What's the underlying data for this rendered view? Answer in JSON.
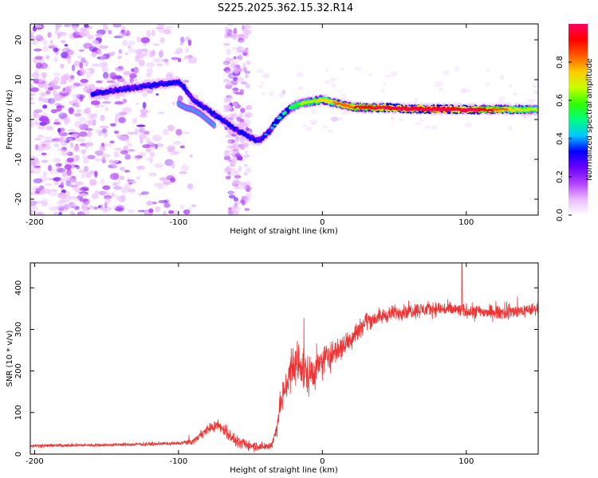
{
  "figure_title": "S225.2025.362.15.32.R14",
  "chart_data": [
    {
      "type": "heatmap",
      "title": "S225.2025.362.15.32.R14",
      "xlabel": "Height of straight line (km)",
      "ylabel": "Frequency (Hz)",
      "xlim": [
        -203,
        150
      ],
      "ylim": [
        -24,
        24
      ],
      "x_ticks": [
        -200,
        -100,
        0,
        100
      ],
      "x_tick_labels": [
        "-200",
        "-100",
        "0",
        "100"
      ],
      "y_ticks": [
        -20,
        -10,
        0,
        10,
        20
      ],
      "y_tick_labels": [
        "-20",
        "-10",
        "0",
        "10",
        "20"
      ],
      "colorbar": {
        "label": "Normalized spectral amplitude",
        "range": [
          0,
          1
        ],
        "ticks": [
          0.0,
          0.2,
          0.4,
          0.6,
          0.8
        ],
        "tick_labels": [
          "0.0",
          "0.2",
          "0.4",
          "0.6",
          "0.8"
        ],
        "colors": [
          "#ffffff",
          "#e9b9ff",
          "#b23fff",
          "#6a00ff",
          "#0000ff",
          "#00c8ff",
          "#00ff80",
          "#30ff00",
          "#c8ff00",
          "#ffcc00",
          "#ff5a00",
          "#ff0000",
          "#ff0060"
        ]
      },
      "ridge": {
        "x": [
          -160,
          -150,
          -140,
          -130,
          -120,
          -110,
          -100,
          -96,
          -90,
          -80,
          -70,
          -60,
          -50,
          -45,
          -38,
          -33,
          -28,
          -22,
          -15,
          -8,
          0,
          10,
          20,
          30,
          45,
          60,
          80,
          100,
          120,
          150
        ],
        "y": [
          6.5,
          7.0,
          7.5,
          8.0,
          8.5,
          9.0,
          9.5,
          8.0,
          5.0,
          2.5,
          0,
          -2.5,
          -4.5,
          -5.5,
          -3.5,
          -1.0,
          1.0,
          3.0,
          4.0,
          4.5,
          5.0,
          4.0,
          3.2,
          3.0,
          3.0,
          2.7,
          2.6,
          2.5,
          2.5,
          2.5
        ],
        "amplitude": [
          0.3,
          0.3,
          0.3,
          0.3,
          0.3,
          0.3,
          0.3,
          0.3,
          0.3,
          0.3,
          0.3,
          0.3,
          0.3,
          0.3,
          0.35,
          0.4,
          0.45,
          0.5,
          0.55,
          0.6,
          0.65,
          0.7,
          0.75,
          0.8,
          0.88,
          0.93,
          0.95,
          0.9,
          0.75,
          0.55
        ]
      },
      "second_branch": {
        "x": [
          -100,
          -95,
          -90,
          -85,
          -80,
          -75
        ],
        "y": [
          4,
          3,
          2.5,
          1.5,
          0,
          -1.5
        ]
      }
    },
    {
      "type": "line",
      "xlabel": "Height of straight line (km)",
      "ylabel": "SNR (10 * v/v)",
      "xlim": [
        -203,
        150
      ],
      "ylim": [
        0,
        460
      ],
      "x_ticks": [
        -200,
        -100,
        0,
        100
      ],
      "x_tick_labels": [
        "-200",
        "-100",
        "0",
        "100"
      ],
      "y_ticks": [
        0,
        100,
        200,
        300,
        400
      ],
      "y_tick_labels": [
        "0",
        "100",
        "200",
        "300",
        "400"
      ],
      "color": "#ee3333",
      "trend": {
        "x": [
          -203,
          -150,
          -110,
          -100,
          -90,
          -80,
          -72,
          -66,
          -60,
          -50,
          -40,
          -35,
          -32,
          -29,
          -26,
          -22,
          -18,
          -14,
          -10,
          -5,
          0,
          5,
          10,
          15,
          20,
          25,
          30,
          40,
          50,
          60,
          80,
          100,
          120,
          140,
          150
        ],
        "y": [
          20,
          22,
          25,
          26,
          30,
          60,
          70,
          50,
          30,
          20,
          18,
          22,
          60,
          120,
          160,
          190,
          220,
          210,
          190,
          200,
          220,
          240,
          250,
          260,
          280,
          300,
          320,
          330,
          340,
          345,
          350,
          345,
          340,
          345,
          350
        ]
      },
      "noise": {
        "x": [
          -203,
          -100,
          -70,
          -35,
          -22,
          0,
          20,
          40,
          150
        ],
        "amplitude": [
          6,
          6,
          22,
          15,
          85,
          60,
          40,
          28,
          24
        ]
      },
      "peak": {
        "x": 97,
        "y": 460
      }
    }
  ]
}
